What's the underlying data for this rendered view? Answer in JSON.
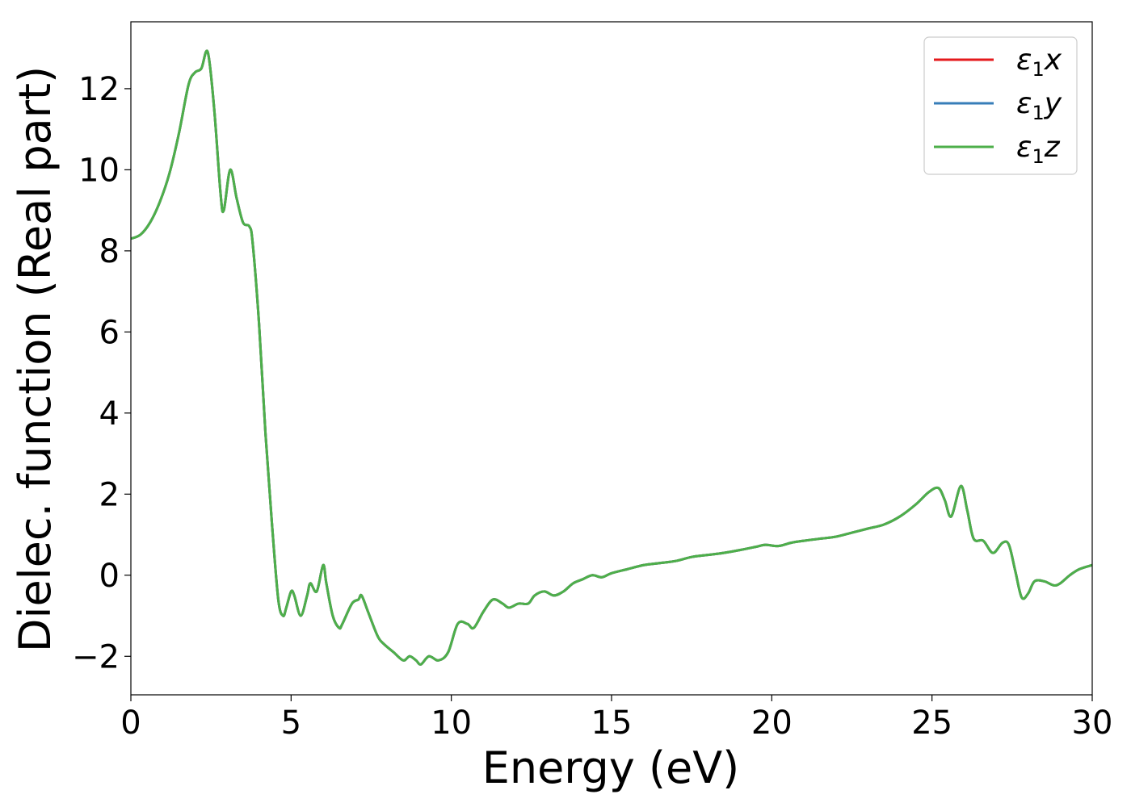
{
  "chart_data": {
    "type": "line",
    "title": "",
    "xlabel": "Energy (eV)",
    "ylabel": "Dielec. function (Real part)",
    "xlim": [
      0,
      30
    ],
    "ylim": [
      -2.95,
      13.65
    ],
    "xticks": [
      0,
      5,
      10,
      15,
      20,
      25,
      30
    ],
    "yticks": [
      -2,
      0,
      2,
      4,
      6,
      8,
      10,
      12
    ],
    "grid": false,
    "legend_position": "top-right",
    "series": [
      {
        "name": "ε1x",
        "legend_main": "ε",
        "legend_sub": "1",
        "legend_suffix": "x",
        "color": "#e41a1c",
        "x": [
          0,
          0.3,
          0.6,
          0.9,
          1.2,
          1.5,
          1.8,
          2.0,
          2.2,
          2.4,
          2.6,
          2.8,
          2.9,
          3.1,
          3.3,
          3.5,
          3.7,
          3.8,
          4.0,
          4.2,
          4.4,
          4.6,
          4.75,
          4.85,
          5.0,
          5.1,
          5.3,
          5.5,
          5.6,
          5.8,
          6.0,
          6.1,
          6.3,
          6.5,
          6.6,
          6.9,
          7.1,
          7.2,
          7.4,
          7.7,
          7.9,
          8.2,
          8.5,
          8.7,
          8.9,
          9.05,
          9.3,
          9.6,
          9.9,
          10.2,
          10.5,
          10.7,
          11.0,
          11.3,
          11.6,
          11.8,
          12.1,
          12.4,
          12.6,
          12.9,
          13.2,
          13.5,
          13.8,
          14.1,
          14.4,
          14.7,
          15.0,
          15.5,
          16.0,
          16.5,
          17.0,
          17.5,
          18.0,
          18.5,
          19.0,
          19.5,
          19.8,
          20.2,
          20.6,
          21.0,
          21.5,
          22.0,
          22.5,
          23.0,
          23.5,
          24.0,
          24.5,
          24.9,
          25.2,
          25.4,
          25.6,
          25.9,
          26.1,
          26.3,
          26.6,
          26.9,
          27.2,
          27.4,
          27.6,
          27.8,
          28.0,
          28.2,
          28.5,
          28.8,
          29.0,
          29.3,
          29.6,
          30.0
        ],
        "y": [
          8.3,
          8.4,
          8.7,
          9.2,
          9.9,
          10.9,
          12.1,
          12.4,
          12.5,
          12.9,
          11.5,
          9.4,
          9.0,
          10.0,
          9.3,
          8.7,
          8.6,
          8.2,
          6.2,
          3.5,
          1.3,
          -0.6,
          -1.0,
          -0.8,
          -0.4,
          -0.5,
          -1.0,
          -0.5,
          -0.2,
          -0.4,
          0.25,
          -0.2,
          -1.0,
          -1.3,
          -1.2,
          -0.7,
          -0.6,
          -0.5,
          -0.9,
          -1.5,
          -1.7,
          -1.9,
          -2.1,
          -2.0,
          -2.1,
          -2.2,
          -2.0,
          -2.1,
          -1.9,
          -1.2,
          -1.2,
          -1.3,
          -0.9,
          -0.6,
          -0.7,
          -0.8,
          -0.7,
          -0.7,
          -0.5,
          -0.4,
          -0.5,
          -0.4,
          -0.2,
          -0.1,
          0.0,
          -0.05,
          0.05,
          0.15,
          0.25,
          0.3,
          0.35,
          0.45,
          0.5,
          0.55,
          0.62,
          0.7,
          0.75,
          0.72,
          0.8,
          0.85,
          0.9,
          0.95,
          1.05,
          1.15,
          1.25,
          1.45,
          1.75,
          2.05,
          2.15,
          1.85,
          1.45,
          2.2,
          1.6,
          0.9,
          0.85,
          0.55,
          0.8,
          0.75,
          0.1,
          -0.55,
          -0.45,
          -0.15,
          -0.15,
          -0.25,
          -0.2,
          0.0,
          0.15,
          0.25
        ]
      },
      {
        "name": "ε1y",
        "legend_main": "ε",
        "legend_sub": "1",
        "legend_suffix": "y",
        "color": "#377eb8",
        "x": [
          0,
          0.3,
          0.6,
          0.9,
          1.2,
          1.5,
          1.8,
          2.0,
          2.2,
          2.4,
          2.6,
          2.8,
          2.9,
          3.1,
          3.3,
          3.5,
          3.7,
          3.8,
          4.0,
          4.2,
          4.4,
          4.6,
          4.75,
          4.85,
          5.0,
          5.1,
          5.3,
          5.5,
          5.6,
          5.8,
          6.0,
          6.1,
          6.3,
          6.5,
          6.6,
          6.9,
          7.1,
          7.2,
          7.4,
          7.7,
          7.9,
          8.2,
          8.5,
          8.7,
          8.9,
          9.05,
          9.3,
          9.6,
          9.9,
          10.2,
          10.5,
          10.7,
          11.0,
          11.3,
          11.6,
          11.8,
          12.1,
          12.4,
          12.6,
          12.9,
          13.2,
          13.5,
          13.8,
          14.1,
          14.4,
          14.7,
          15.0,
          15.5,
          16.0,
          16.5,
          17.0,
          17.5,
          18.0,
          18.5,
          19.0,
          19.5,
          19.8,
          20.2,
          20.6,
          21.0,
          21.5,
          22.0,
          22.5,
          23.0,
          23.5,
          24.0,
          24.5,
          24.9,
          25.2,
          25.4,
          25.6,
          25.9,
          26.1,
          26.3,
          26.6,
          26.9,
          27.2,
          27.4,
          27.6,
          27.8,
          28.0,
          28.2,
          28.5,
          28.8,
          29.0,
          29.3,
          29.6,
          30.0
        ],
        "y": [
          8.3,
          8.4,
          8.7,
          9.2,
          9.9,
          10.9,
          12.1,
          12.4,
          12.5,
          12.9,
          11.5,
          9.4,
          9.0,
          10.0,
          9.3,
          8.7,
          8.6,
          8.2,
          6.2,
          3.5,
          1.3,
          -0.6,
          -1.0,
          -0.8,
          -0.4,
          -0.5,
          -1.0,
          -0.5,
          -0.2,
          -0.4,
          0.25,
          -0.2,
          -1.0,
          -1.3,
          -1.2,
          -0.7,
          -0.6,
          -0.5,
          -0.9,
          -1.5,
          -1.7,
          -1.9,
          -2.1,
          -2.0,
          -2.1,
          -2.2,
          -2.0,
          -2.1,
          -1.9,
          -1.2,
          -1.2,
          -1.3,
          -0.9,
          -0.6,
          -0.7,
          -0.8,
          -0.7,
          -0.7,
          -0.5,
          -0.4,
          -0.5,
          -0.4,
          -0.2,
          -0.1,
          0.0,
          -0.05,
          0.05,
          0.15,
          0.25,
          0.3,
          0.35,
          0.45,
          0.5,
          0.55,
          0.62,
          0.7,
          0.75,
          0.72,
          0.8,
          0.85,
          0.9,
          0.95,
          1.05,
          1.15,
          1.25,
          1.45,
          1.75,
          2.05,
          2.15,
          1.85,
          1.45,
          2.2,
          1.6,
          0.9,
          0.85,
          0.55,
          0.8,
          0.75,
          0.1,
          -0.55,
          -0.45,
          -0.15,
          -0.15,
          -0.25,
          -0.2,
          0.0,
          0.15,
          0.25
        ]
      },
      {
        "name": "ε1z",
        "legend_main": "ε",
        "legend_sub": "1",
        "legend_suffix": "z",
        "color": "#4daf4a",
        "x": [
          0,
          0.3,
          0.6,
          0.9,
          1.2,
          1.5,
          1.8,
          2.0,
          2.2,
          2.4,
          2.6,
          2.8,
          2.9,
          3.1,
          3.3,
          3.5,
          3.7,
          3.8,
          4.0,
          4.2,
          4.4,
          4.6,
          4.75,
          4.85,
          5.0,
          5.1,
          5.3,
          5.5,
          5.6,
          5.8,
          6.0,
          6.1,
          6.3,
          6.5,
          6.6,
          6.9,
          7.1,
          7.2,
          7.4,
          7.7,
          7.9,
          8.2,
          8.5,
          8.7,
          8.9,
          9.05,
          9.3,
          9.6,
          9.9,
          10.2,
          10.5,
          10.7,
          11.0,
          11.3,
          11.6,
          11.8,
          12.1,
          12.4,
          12.6,
          12.9,
          13.2,
          13.5,
          13.8,
          14.1,
          14.4,
          14.7,
          15.0,
          15.5,
          16.0,
          16.5,
          17.0,
          17.5,
          18.0,
          18.5,
          19.0,
          19.5,
          19.8,
          20.2,
          20.6,
          21.0,
          21.5,
          22.0,
          22.5,
          23.0,
          23.5,
          24.0,
          24.5,
          24.9,
          25.2,
          25.4,
          25.6,
          25.9,
          26.1,
          26.3,
          26.6,
          26.9,
          27.2,
          27.4,
          27.6,
          27.8,
          28.0,
          28.2,
          28.5,
          28.8,
          29.0,
          29.3,
          29.6,
          30.0
        ],
        "y": [
          8.3,
          8.4,
          8.7,
          9.2,
          9.9,
          10.9,
          12.1,
          12.4,
          12.5,
          12.9,
          11.5,
          9.4,
          9.0,
          10.0,
          9.3,
          8.7,
          8.6,
          8.2,
          6.2,
          3.5,
          1.3,
          -0.6,
          -1.0,
          -0.8,
          -0.4,
          -0.5,
          -1.0,
          -0.5,
          -0.2,
          -0.4,
          0.25,
          -0.2,
          -1.0,
          -1.3,
          -1.2,
          -0.7,
          -0.6,
          -0.5,
          -0.9,
          -1.5,
          -1.7,
          -1.9,
          -2.1,
          -2.0,
          -2.1,
          -2.2,
          -2.0,
          -2.1,
          -1.9,
          -1.2,
          -1.2,
          -1.3,
          -0.9,
          -0.6,
          -0.7,
          -0.8,
          -0.7,
          -0.7,
          -0.5,
          -0.4,
          -0.5,
          -0.4,
          -0.2,
          -0.1,
          0.0,
          -0.05,
          0.05,
          0.15,
          0.25,
          0.3,
          0.35,
          0.45,
          0.5,
          0.55,
          0.62,
          0.7,
          0.75,
          0.72,
          0.8,
          0.85,
          0.9,
          0.95,
          1.05,
          1.15,
          1.25,
          1.45,
          1.75,
          2.05,
          2.15,
          1.85,
          1.45,
          2.2,
          1.6,
          0.9,
          0.85,
          0.55,
          0.8,
          0.75,
          0.1,
          -0.55,
          -0.45,
          -0.15,
          -0.15,
          -0.25,
          -0.2,
          0.0,
          0.15,
          0.25
        ]
      }
    ]
  }
}
